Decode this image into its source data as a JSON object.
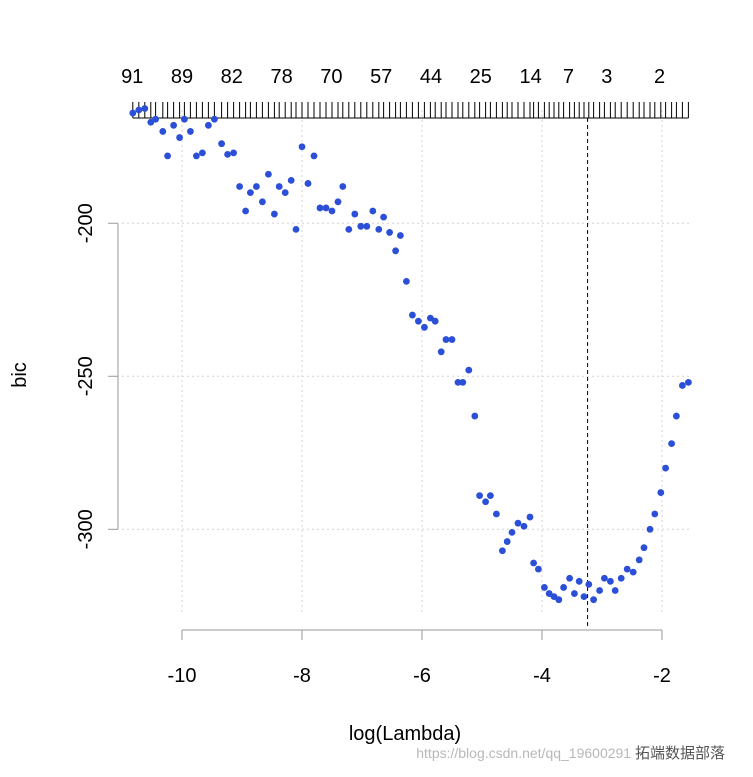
{
  "chart_data": {
    "type": "scatter",
    "title": "",
    "xlabel": "log(Lambda)",
    "ylabel": "bic",
    "xlim": [
      -11.0,
      -1.5
    ],
    "ylim": [
      -328,
      -163
    ],
    "x_ticks": [
      -10,
      -8,
      -6,
      -4,
      -2
    ],
    "x_tick_labels": [
      "-10",
      "-8",
      "-6",
      "-4",
      "-2"
    ],
    "y_ticks": [
      -200,
      -250,
      -300
    ],
    "y_tick_labels": [
      "-200",
      "-250",
      "-300"
    ],
    "top_axis_labels": [
      {
        "x": -10.83,
        "label": "91"
      },
      {
        "x": -10.0,
        "label": "89"
      },
      {
        "x": -9.17,
        "label": "82"
      },
      {
        "x": -8.34,
        "label": "78"
      },
      {
        "x": -7.51,
        "label": "70"
      },
      {
        "x": -6.68,
        "label": "57"
      },
      {
        "x": -5.85,
        "label": "44"
      },
      {
        "x": -5.02,
        "label": "25"
      },
      {
        "x": -4.19,
        "label": "14"
      },
      {
        "x": -3.56,
        "label": "7"
      },
      {
        "x": -2.92,
        "label": "3"
      },
      {
        "x": -2.04,
        "label": "2"
      }
    ],
    "vline_x": -3.24,
    "grid": true,
    "point_color": "#2b4fd6",
    "points": [
      {
        "x": -10.82,
        "y": -164
      },
      {
        "x": -10.72,
        "y": -163
      },
      {
        "x": -10.62,
        "y": -162.5
      },
      {
        "x": -10.52,
        "y": -167
      },
      {
        "x": -10.44,
        "y": -166
      },
      {
        "x": -10.32,
        "y": -170
      },
      {
        "x": -10.24,
        "y": -178
      },
      {
        "x": -10.14,
        "y": -168
      },
      {
        "x": -10.04,
        "y": -172
      },
      {
        "x": -9.96,
        "y": -166
      },
      {
        "x": -9.86,
        "y": -170
      },
      {
        "x": -9.76,
        "y": -178
      },
      {
        "x": -9.66,
        "y": -177
      },
      {
        "x": -9.56,
        "y": -168
      },
      {
        "x": -9.46,
        "y": -166
      },
      {
        "x": -9.34,
        "y": -174
      },
      {
        "x": -9.24,
        "y": -177.5
      },
      {
        "x": -9.14,
        "y": -177
      },
      {
        "x": -9.04,
        "y": -188
      },
      {
        "x": -8.94,
        "y": -196
      },
      {
        "x": -8.86,
        "y": -190
      },
      {
        "x": -8.76,
        "y": -188
      },
      {
        "x": -8.66,
        "y": -193
      },
      {
        "x": -8.56,
        "y": -184
      },
      {
        "x": -8.46,
        "y": -197
      },
      {
        "x": -8.38,
        "y": -188
      },
      {
        "x": -8.28,
        "y": -190
      },
      {
        "x": -8.18,
        "y": -186
      },
      {
        "x": -8.1,
        "y": -202
      },
      {
        "x": -8.0,
        "y": -175
      },
      {
        "x": -7.9,
        "y": -187
      },
      {
        "x": -7.8,
        "y": -178
      },
      {
        "x": -7.7,
        "y": -195
      },
      {
        "x": -7.6,
        "y": -195
      },
      {
        "x": -7.5,
        "y": -196
      },
      {
        "x": -7.4,
        "y": -193
      },
      {
        "x": -7.32,
        "y": -188
      },
      {
        "x": -7.22,
        "y": -202
      },
      {
        "x": -7.12,
        "y": -197
      },
      {
        "x": -7.02,
        "y": -201
      },
      {
        "x": -6.92,
        "y": -201
      },
      {
        "x": -6.82,
        "y": -196
      },
      {
        "x": -6.72,
        "y": -202
      },
      {
        "x": -6.64,
        "y": -198
      },
      {
        "x": -6.54,
        "y": -203
      },
      {
        "x": -6.44,
        "y": -209
      },
      {
        "x": -6.36,
        "y": -204
      },
      {
        "x": -6.26,
        "y": -219
      },
      {
        "x": -6.16,
        "y": -230
      },
      {
        "x": -6.06,
        "y": -232
      },
      {
        "x": -5.96,
        "y": -234
      },
      {
        "x": -5.86,
        "y": -231
      },
      {
        "x": -5.78,
        "y": -232
      },
      {
        "x": -5.68,
        "y": -242
      },
      {
        "x": -5.6,
        "y": -238
      },
      {
        "x": -5.5,
        "y": -238
      },
      {
        "x": -5.4,
        "y": -252
      },
      {
        "x": -5.32,
        "y": -252
      },
      {
        "x": -5.22,
        "y": -248
      },
      {
        "x": -5.12,
        "y": -263
      },
      {
        "x": -5.04,
        "y": -289
      },
      {
        "x": -4.94,
        "y": -291
      },
      {
        "x": -4.86,
        "y": -289
      },
      {
        "x": -4.76,
        "y": -295
      },
      {
        "x": -4.66,
        "y": -307
      },
      {
        "x": -4.58,
        "y": -304
      },
      {
        "x": -4.5,
        "y": -301
      },
      {
        "x": -4.4,
        "y": -298
      },
      {
        "x": -4.3,
        "y": -299
      },
      {
        "x": -4.2,
        "y": -296
      },
      {
        "x": -4.14,
        "y": -311
      },
      {
        "x": -4.06,
        "y": -313
      },
      {
        "x": -3.96,
        "y": -319
      },
      {
        "x": -3.88,
        "y": -321
      },
      {
        "x": -3.8,
        "y": -322
      },
      {
        "x": -3.72,
        "y": -323
      },
      {
        "x": -3.64,
        "y": -319
      },
      {
        "x": -3.54,
        "y": -316
      },
      {
        "x": -3.46,
        "y": -321
      },
      {
        "x": -3.38,
        "y": -317
      },
      {
        "x": -3.3,
        "y": -322
      },
      {
        "x": -3.22,
        "y": -318
      },
      {
        "x": -3.14,
        "y": -323
      },
      {
        "x": -3.04,
        "y": -320
      },
      {
        "x": -2.96,
        "y": -316
      },
      {
        "x": -2.86,
        "y": -317
      },
      {
        "x": -2.78,
        "y": -320
      },
      {
        "x": -2.68,
        "y": -316
      },
      {
        "x": -2.58,
        "y": -313
      },
      {
        "x": -2.48,
        "y": -314
      },
      {
        "x": -2.38,
        "y": -310
      },
      {
        "x": -2.3,
        "y": -306
      },
      {
        "x": -2.2,
        "y": -300
      },
      {
        "x": -2.12,
        "y": -295
      },
      {
        "x": -2.02,
        "y": -288
      },
      {
        "x": -1.94,
        "y": -280
      },
      {
        "x": -1.84,
        "y": -272
      },
      {
        "x": -1.76,
        "y": -263
      },
      {
        "x": -1.66,
        "y": -253
      },
      {
        "x": -1.56,
        "y": -252
      }
    ]
  },
  "watermark": {
    "brand": "拓端数据部落",
    "url": "https://blog.csdn.net/qq_19600291"
  }
}
